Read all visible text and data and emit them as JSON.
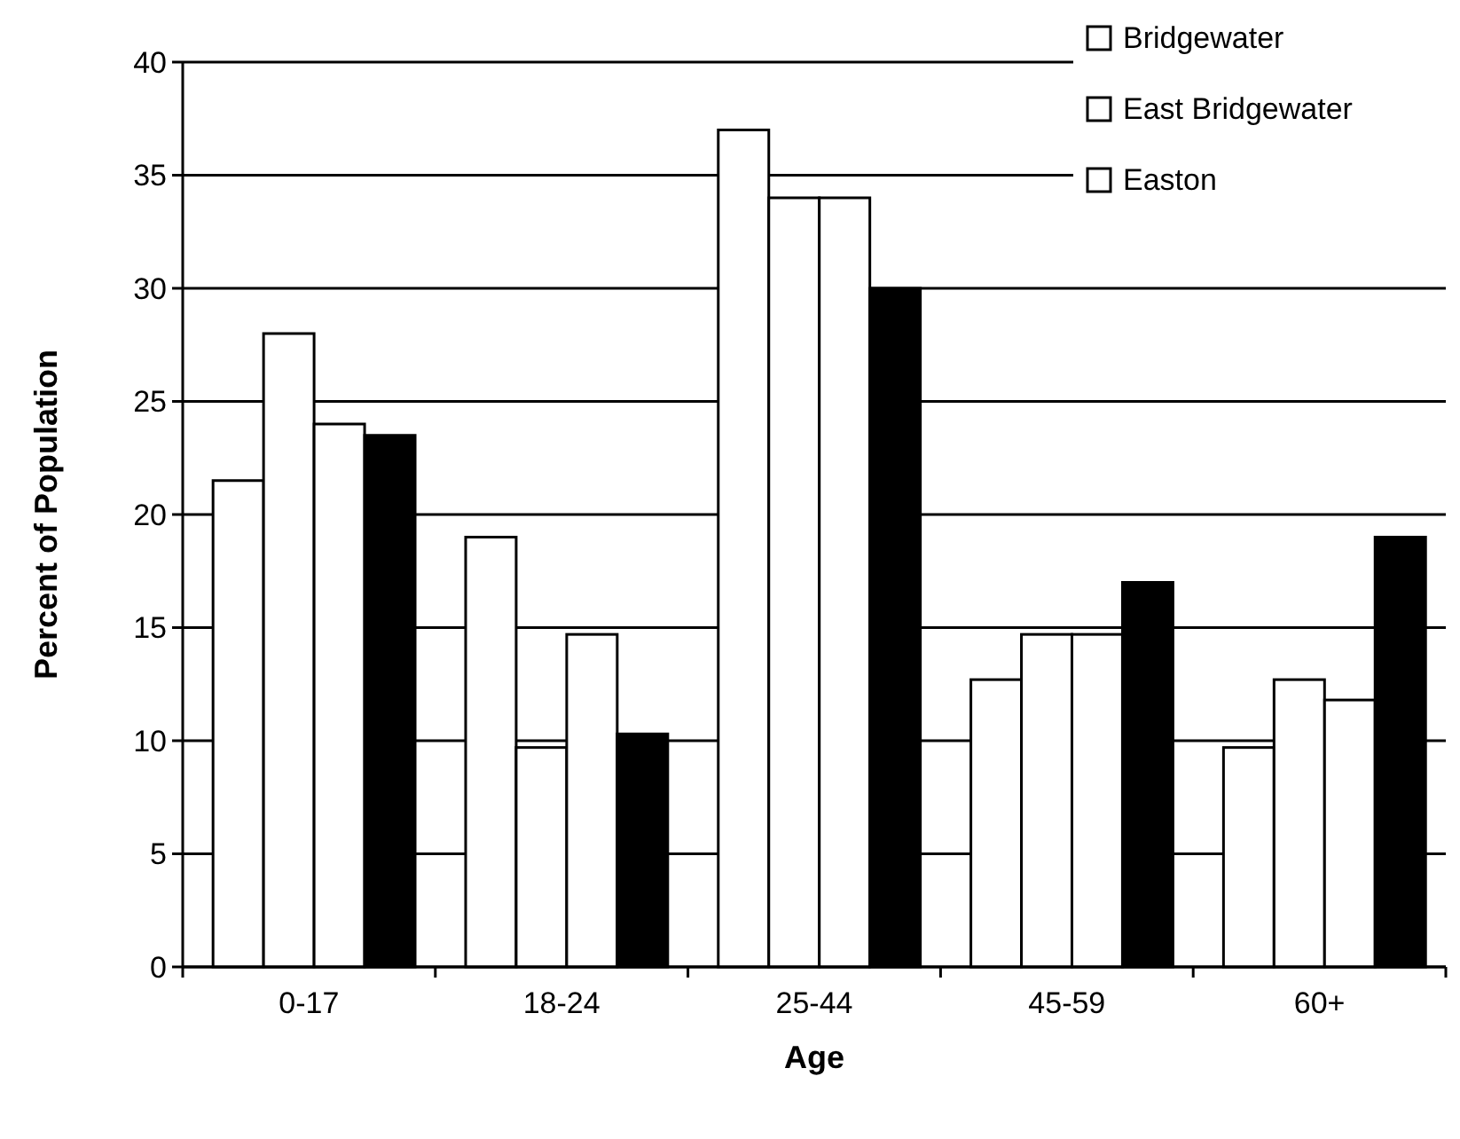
{
  "chart_data": {
    "type": "bar",
    "xlabel": "Age",
    "ylabel": "Percent of Population",
    "categories": [
      "0-17",
      "18-24",
      "25-44",
      "45-59",
      "60+"
    ],
    "series": [
      {
        "name": "Bridgewater",
        "color": "#ffffff",
        "values": [
          21.5,
          19,
          37,
          12.7,
          9.7
        ]
      },
      {
        "name": "East Bridgewater",
        "color": "#ffffff",
        "values": [
          28,
          9.7,
          34,
          14.7,
          12.7
        ]
      },
      {
        "name": "Easton",
        "color": "#ffffff",
        "values": [
          24,
          14.7,
          34,
          14.7,
          11.8
        ]
      },
      {
        "color": "#000000",
        "values": [
          23.5,
          10.3,
          30,
          17,
          19
        ]
      }
    ],
    "ylim": [
      0,
      40
    ],
    "yticks": [
      0,
      5,
      10,
      15,
      20,
      25,
      30,
      35,
      40
    ],
    "grid": "y",
    "legend": "top right"
  }
}
